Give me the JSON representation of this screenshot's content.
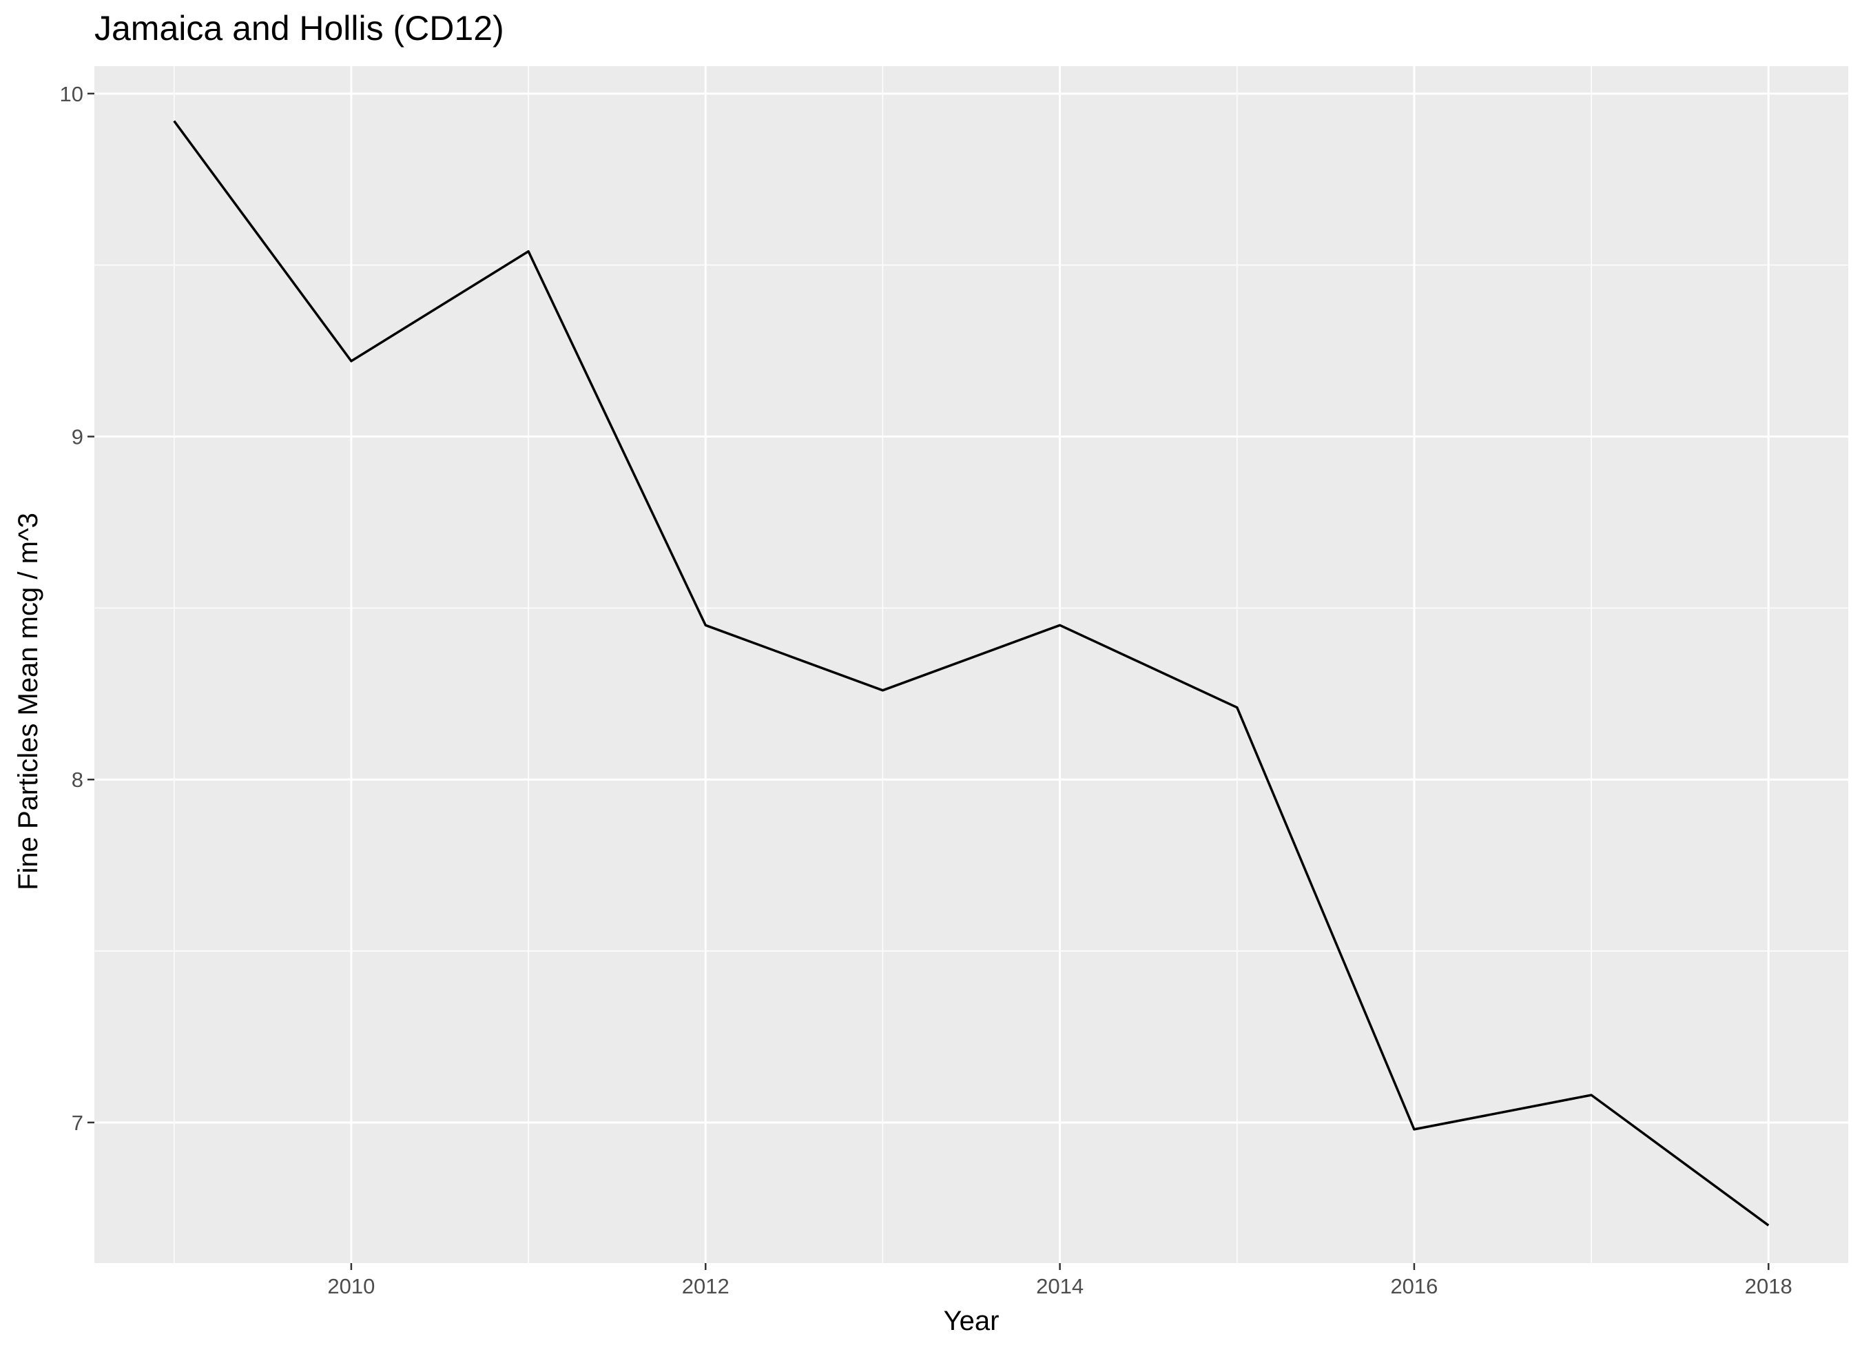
{
  "chart_data": {
    "type": "line",
    "title": "Jamaica and Hollis (CD12)",
    "xlabel": "Year",
    "ylabel": "Fine Particles Mean mcg / m^3",
    "x": [
      2009,
      2010,
      2011,
      2012,
      2013,
      2014,
      2015,
      2016,
      2017,
      2018
    ],
    "series": [
      {
        "values": [
          9.92,
          9.22,
          9.54,
          8.45,
          8.26,
          8.45,
          8.21,
          6.98,
          7.08,
          6.7
        ]
      }
    ],
    "xlim": [
      2008.55,
      2018.45
    ],
    "ylim": [
      6.59,
      10.08
    ],
    "xticks": [
      2010,
      2012,
      2014,
      2016,
      2018
    ],
    "yticks": [
      7,
      8,
      9,
      10
    ],
    "grid": true,
    "legend": "none",
    "colors": {
      "panel": "#ebebeb",
      "grid": "#ffffff",
      "line": "#000000",
      "tick_text": "#4d4d4d",
      "tick_mark": "#333333"
    }
  }
}
